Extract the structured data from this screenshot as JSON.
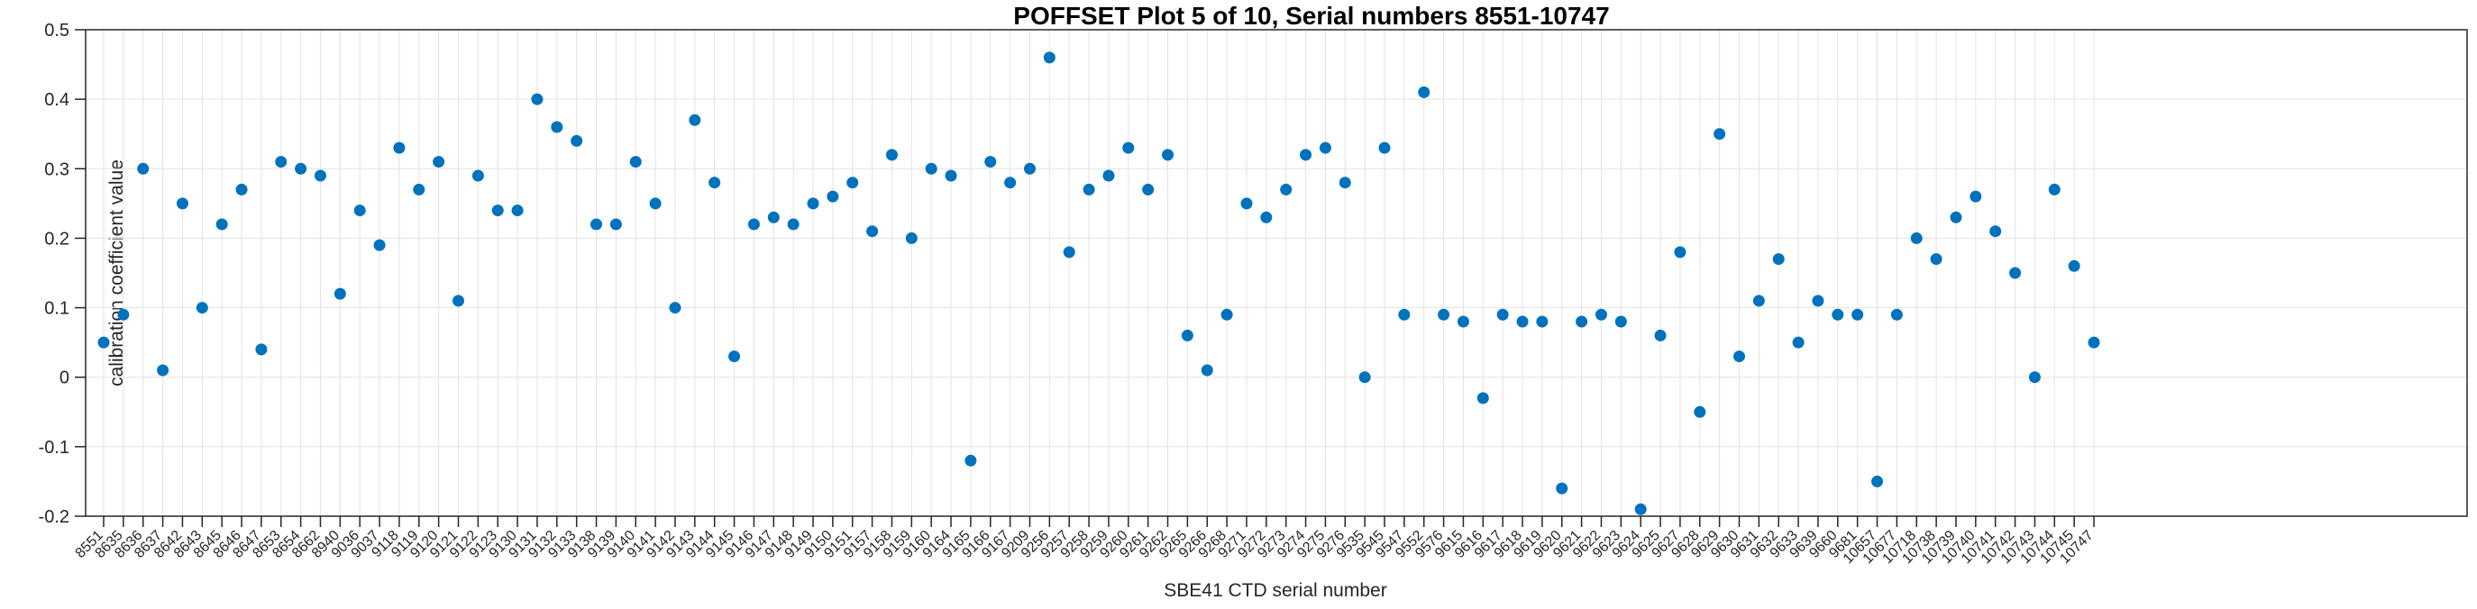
{
  "figure": {
    "title": "POFFSET Plot 5 of 10, Serial numbers 8551-10747",
    "xlabel": "SBE41 CTD serial number",
    "ylabel": "calibration coefficient value"
  },
  "chart_data": {
    "type": "scatter",
    "title": "POFFSET Plot 5 of 10, Serial numbers 8551-10747",
    "xlabel": "SBE41 CTD serial number",
    "ylabel": "calibration coefficient value",
    "ylim": [
      -0.2,
      0.5
    ],
    "grid": true,
    "legend": "none",
    "marker_color": "#0072BD",
    "grid_color": "#e2e2e2",
    "axis_color": "#262626",
    "y_ticks": [
      {
        "value": 0.5,
        "label": "0.5"
      },
      {
        "value": 0.4,
        "label": "0.4"
      },
      {
        "value": 0.3,
        "label": "0.3"
      },
      {
        "value": 0.2,
        "label": "0.2"
      },
      {
        "value": 0.1,
        "label": "0.1"
      },
      {
        "value": 0.0,
        "label": "0"
      },
      {
        "value": -0.1,
        "label": "-0.1"
      },
      {
        "value": -0.2,
        "label": "-0.2"
      }
    ],
    "categories": [
      "8551",
      "8635",
      "8636",
      "8637",
      "8642",
      "8643",
      "8645",
      "8646",
      "8647",
      "8653",
      "8654",
      "8662",
      "8940",
      "9036",
      "9037",
      "9118",
      "9119",
      "9120",
      "9121",
      "9122",
      "9123",
      "9130",
      "9131",
      "9132",
      "9133",
      "9138",
      "9139",
      "9140",
      "9141",
      "9142",
      "9143",
      "9144",
      "9145",
      "9146",
      "9147",
      "9148",
      "9149",
      "9150",
      "9151",
      "9157",
      "9158",
      "9159",
      "9160",
      "9164",
      "9165",
      "9166",
      "9167",
      "9209",
      "9256",
      "9257",
      "9258",
      "9259",
      "9260",
      "9261",
      "9262",
      "9265",
      "9266",
      "9268",
      "9271",
      "9272",
      "9273",
      "9274",
      "9275",
      "9276",
      "9535",
      "9545",
      "9547",
      "9552",
      "9576",
      "9615",
      "9616",
      "9617",
      "9618",
      "9619",
      "9620",
      "9621",
      "9622",
      "9623",
      "9624",
      "9625",
      "9627",
      "9628",
      "9629",
      "9630",
      "9631",
      "9632",
      "9633",
      "9639",
      "9660",
      "9681",
      "10657",
      "10677",
      "10718",
      "10738",
      "10739",
      "10740",
      "10741",
      "10742",
      "10743",
      "10744",
      "10745",
      "10747"
    ],
    "series": [
      {
        "name": "calibration coefficient",
        "values": [
          0.05,
          0.09,
          0.3,
          0.01,
          0.25,
          0.1,
          0.22,
          0.27,
          0.04,
          0.31,
          0.3,
          0.29,
          0.12,
          0.24,
          0.19,
          0.33,
          0.27,
          0.31,
          0.11,
          0.29,
          0.24,
          0.24,
          0.4,
          0.36,
          0.34,
          0.22,
          0.22,
          0.31,
          0.25,
          0.1,
          0.37,
          0.28,
          0.03,
          0.22,
          0.23,
          0.22,
          0.25,
          0.26,
          0.28,
          0.21,
          0.32,
          0.2,
          0.3,
          0.29,
          -0.12,
          0.31,
          0.28,
          0.3,
          0.46,
          0.18,
          0.27,
          0.29,
          0.33,
          0.27,
          0.32,
          0.06,
          0.01,
          0.09,
          0.25,
          0.23,
          0.27,
          0.32,
          0.33,
          0.28,
          0.0,
          0.33,
          0.09,
          0.41,
          0.09,
          0.08,
          -0.03,
          0.09,
          0.08,
          0.08,
          -0.16,
          0.08,
          0.09,
          0.08,
          -0.19,
          0.06,
          0.18,
          -0.05,
          0.35,
          0.03,
          0.11,
          0.17,
          0.05,
          0.11,
          0.09,
          0.09,
          -0.15,
          0.09,
          0.2,
          0.17,
          0.23,
          0.26,
          0.21,
          0.15,
          0.0,
          0.27,
          0.16,
          0.05
        ]
      }
    ]
  }
}
